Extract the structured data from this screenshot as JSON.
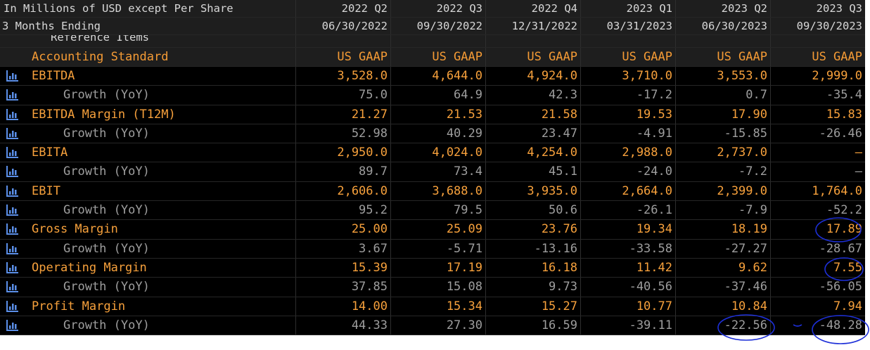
{
  "header": {
    "units": "In Millions of USD except Per Share",
    "period": "3 Months Ending",
    "reference": "Reference Items",
    "periods": [
      {
        "quarter": "2022 Q2",
        "date": "06/30/2022"
      },
      {
        "quarter": "2022 Q3",
        "date": "09/30/2022"
      },
      {
        "quarter": "2022 Q4",
        "date": "12/31/2022"
      },
      {
        "quarter": "2023 Q1",
        "date": "03/31/2023"
      },
      {
        "quarter": "2023 Q2",
        "date": "06/30/2023"
      },
      {
        "quarter": "2023 Q3",
        "date": "09/30/2023"
      }
    ]
  },
  "table": {
    "standard_label": "Accounting Standard",
    "standards": [
      "US GAAP",
      "US GAAP",
      "US GAAP",
      "US GAAP",
      "US GAAP",
      "US GAAP"
    ],
    "rows": [
      {
        "label": "EBITDA",
        "values": [
          "3,528.0",
          "4,644.0",
          "4,924.0",
          "3,710.0",
          "3,553.0",
          "2,999.0"
        ]
      },
      {
        "label": "Growth (YoY)",
        "values": [
          "75.0",
          "64.9",
          "42.3",
          "-17.2",
          "0.7",
          "-35.4"
        ]
      },
      {
        "label": "EBITDA Margin (T12M)",
        "values": [
          "21.27",
          "21.53",
          "21.58",
          "19.53",
          "17.90",
          "15.83"
        ]
      },
      {
        "label": "Growth (YoY)",
        "values": [
          "52.98",
          "40.29",
          "23.47",
          "-4.91",
          "-15.85",
          "-26.46"
        ]
      },
      {
        "label": "EBITA",
        "values": [
          "2,950.0",
          "4,024.0",
          "4,254.0",
          "2,988.0",
          "2,737.0",
          "—"
        ]
      },
      {
        "label": "Growth (YoY)",
        "values": [
          "89.7",
          "73.4",
          "45.1",
          "-24.0",
          "-7.2",
          "—"
        ]
      },
      {
        "label": "EBIT",
        "values": [
          "2,606.0",
          "3,688.0",
          "3,935.0",
          "2,664.0",
          "2,399.0",
          "1,764.0"
        ]
      },
      {
        "label": "Growth (YoY)",
        "values": [
          "95.2",
          "79.5",
          "50.6",
          "-26.1",
          "-7.9",
          "-52.2"
        ]
      },
      {
        "label": "Gross Margin",
        "values": [
          "25.00",
          "25.09",
          "23.76",
          "19.34",
          "18.19",
          "17.89"
        ]
      },
      {
        "label": "Growth (YoY)",
        "values": [
          "3.67",
          "-5.71",
          "-13.16",
          "-33.58",
          "-27.27",
          "-28.67"
        ]
      },
      {
        "label": "Operating Margin",
        "values": [
          "15.39",
          "17.19",
          "16.18",
          "11.42",
          "9.62",
          "7.55"
        ]
      },
      {
        "label": "Growth (YoY)",
        "values": [
          "37.85",
          "15.08",
          "9.73",
          "-40.56",
          "-37.46",
          "-56.05"
        ]
      },
      {
        "label": "Profit Margin",
        "values": [
          "14.00",
          "15.34",
          "15.27",
          "10.77",
          "10.84",
          "7.94"
        ]
      },
      {
        "label": "Growth (YoY)",
        "values": [
          "44.33",
          "27.30",
          "16.59",
          "-39.11",
          "-22.56",
          "-48.28"
        ]
      }
    ]
  }
}
